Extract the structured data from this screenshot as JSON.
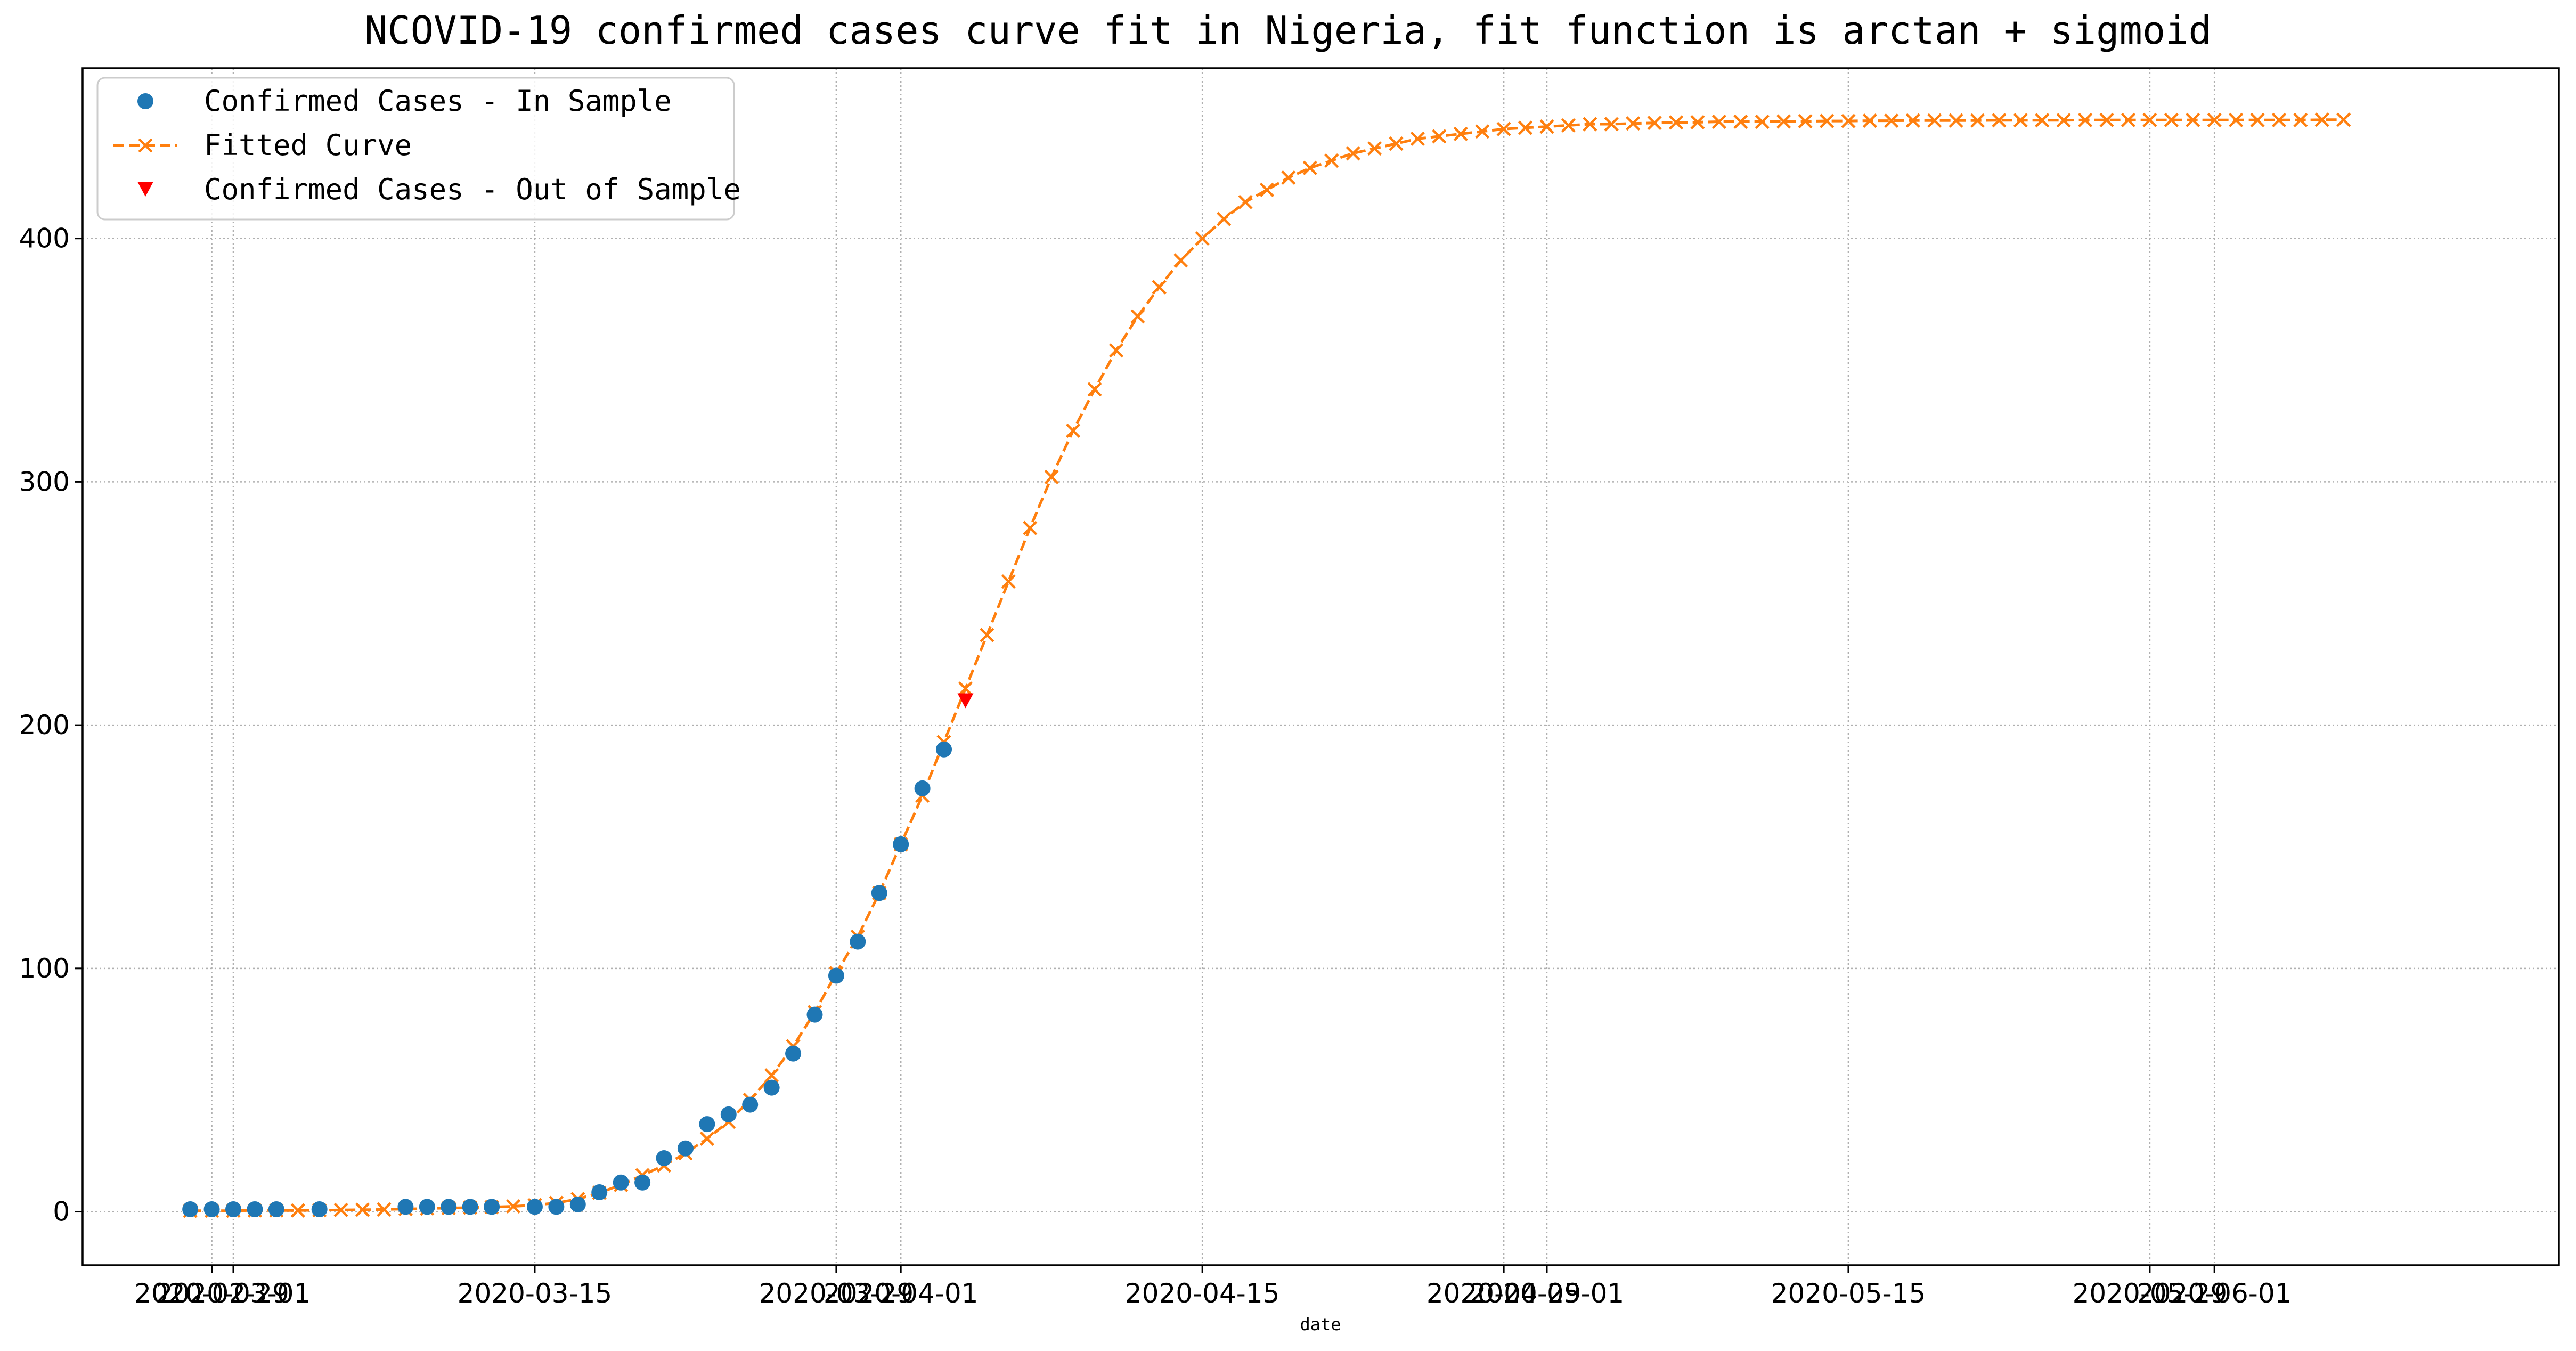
{
  "chart_data": {
    "type": "line",
    "title": "NCOVID-19 confirmed cases curve fit in Nigeria, fit function is arctan + sigmoid",
    "xlabel": "date",
    "ylabel": "",
    "x_axis_type": "date",
    "xlim": [
      "2020-02-23",
      "2020-06-17"
    ],
    "ylim": [
      -22,
      470
    ],
    "x_tick_labels": [
      {
        "date": "2020-02-29",
        "label": "2020-02-29"
      },
      {
        "date": "2020-03-01",
        "label": "2020-03-01"
      },
      {
        "date": "2020-03-15",
        "label": "2020-03-15"
      },
      {
        "date": "2020-03-29",
        "label": "2020-03-29"
      },
      {
        "date": "2020-04-01",
        "label": "2020-04-01"
      },
      {
        "date": "2020-04-15",
        "label": "2020-04-15"
      },
      {
        "date": "2020-04-29",
        "label": "2020-04-29"
      },
      {
        "date": "2020-05-01",
        "label": "2020-05-01"
      },
      {
        "date": "2020-05-15",
        "label": "2020-05-15"
      },
      {
        "date": "2020-05-29",
        "label": "2020-05-29"
      },
      {
        "date": "2020-06-01",
        "label": "2020-06-01"
      }
    ],
    "y_ticks": [
      0,
      100,
      200,
      300,
      400
    ],
    "grid": true,
    "grid_style": "dotted",
    "legend_position": "top-left",
    "series": [
      {
        "name": "Confirmed Cases - In Sample",
        "kind": "scatter",
        "marker": "circle",
        "color": "#1f77b4",
        "points": [
          [
            "2020-02-28",
            1
          ],
          [
            "2020-02-29",
            1
          ],
          [
            "2020-03-01",
            1
          ],
          [
            "2020-03-02",
            1
          ],
          [
            "2020-03-03",
            1
          ],
          [
            "2020-03-05",
            1
          ],
          [
            "2020-03-09",
            2
          ],
          [
            "2020-03-10",
            2
          ],
          [
            "2020-03-11",
            2
          ],
          [
            "2020-03-12",
            2
          ],
          [
            "2020-03-13",
            2
          ],
          [
            "2020-03-15",
            2
          ],
          [
            "2020-03-16",
            2
          ],
          [
            "2020-03-17",
            3
          ],
          [
            "2020-03-18",
            8
          ],
          [
            "2020-03-19",
            12
          ],
          [
            "2020-03-20",
            12
          ],
          [
            "2020-03-21",
            22
          ],
          [
            "2020-03-22",
            26
          ],
          [
            "2020-03-23",
            36
          ],
          [
            "2020-03-24",
            40
          ],
          [
            "2020-03-25",
            44
          ],
          [
            "2020-03-26",
            51
          ],
          [
            "2020-03-27",
            65
          ],
          [
            "2020-03-28",
            81
          ],
          [
            "2020-03-29",
            97
          ],
          [
            "2020-03-30",
            111
          ],
          [
            "2020-03-31",
            131
          ],
          [
            "2020-04-01",
            151
          ],
          [
            "2020-04-02",
            174
          ],
          [
            "2020-04-03",
            190
          ]
        ]
      },
      {
        "name": "Fitted Curve",
        "kind": "line",
        "line_style": "dashed",
        "marker": "x",
        "color": "#ff7f0e",
        "points": [
          [
            "2020-02-28",
            0.4
          ],
          [
            "2020-02-29",
            0.4
          ],
          [
            "2020-03-01",
            0.4
          ],
          [
            "2020-03-02",
            0.5
          ],
          [
            "2020-03-03",
            0.5
          ],
          [
            "2020-03-04",
            0.5
          ],
          [
            "2020-03-05",
            0.6
          ],
          [
            "2020-03-06",
            0.7
          ],
          [
            "2020-03-07",
            0.8
          ],
          [
            "2020-03-08",
            0.9
          ],
          [
            "2020-03-09",
            1.1
          ],
          [
            "2020-03-10",
            1.3
          ],
          [
            "2020-03-11",
            1.5
          ],
          [
            "2020-03-12",
            1.7
          ],
          [
            "2020-03-13",
            1.9
          ],
          [
            "2020-03-14",
            2.2
          ],
          [
            "2020-03-15",
            2.7
          ],
          [
            "2020-03-16",
            3.6
          ],
          [
            "2020-03-17",
            5.2
          ],
          [
            "2020-03-18",
            7.8
          ],
          [
            "2020-03-19",
            11
          ],
          [
            "2020-03-20",
            15
          ],
          [
            "2020-03-21",
            19
          ],
          [
            "2020-03-22",
            24
          ],
          [
            "2020-03-23",
            30
          ],
          [
            "2020-03-24",
            37
          ],
          [
            "2020-03-25",
            46
          ],
          [
            "2020-03-26",
            56
          ],
          [
            "2020-03-27",
            68
          ],
          [
            "2020-03-28",
            82
          ],
          [
            "2020-03-29",
            98
          ],
          [
            "2020-03-30",
            113
          ],
          [
            "2020-03-31",
            131
          ],
          [
            "2020-04-01",
            151
          ],
          [
            "2020-04-02",
            171
          ],
          [
            "2020-04-03",
            193
          ],
          [
            "2020-04-04",
            215
          ],
          [
            "2020-04-05",
            237
          ],
          [
            "2020-04-06",
            259
          ],
          [
            "2020-04-07",
            281
          ],
          [
            "2020-04-08",
            302
          ],
          [
            "2020-04-09",
            321
          ],
          [
            "2020-04-10",
            338
          ],
          [
            "2020-04-11",
            354
          ],
          [
            "2020-04-12",
            368
          ],
          [
            "2020-04-13",
            380
          ],
          [
            "2020-04-14",
            391
          ],
          [
            "2020-04-15",
            400
          ],
          [
            "2020-04-16",
            408
          ],
          [
            "2020-04-17",
            415
          ],
          [
            "2020-04-18",
            420
          ],
          [
            "2020-04-19",
            425
          ],
          [
            "2020-04-20",
            429
          ],
          [
            "2020-04-21",
            432
          ],
          [
            "2020-04-22",
            435
          ],
          [
            "2020-04-23",
            437
          ],
          [
            "2020-04-24",
            439
          ],
          [
            "2020-04-25",
            441
          ],
          [
            "2020-04-26",
            442
          ],
          [
            "2020-04-27",
            443
          ],
          [
            "2020-04-28",
            444
          ],
          [
            "2020-04-29",
            445
          ],
          [
            "2020-04-30",
            445.5
          ],
          [
            "2020-05-01",
            446
          ],
          [
            "2020-05-02",
            446.5
          ],
          [
            "2020-05-03",
            447
          ],
          [
            "2020-05-04",
            447
          ],
          [
            "2020-05-05",
            447.3
          ],
          [
            "2020-05-06",
            447.5
          ],
          [
            "2020-05-07",
            447.7
          ],
          [
            "2020-05-08",
            447.8
          ],
          [
            "2020-05-09",
            448
          ],
          [
            "2020-05-10",
            448
          ],
          [
            "2020-05-11",
            448
          ],
          [
            "2020-05-12",
            448.1
          ],
          [
            "2020-05-13",
            448.2
          ],
          [
            "2020-05-14",
            448.3
          ],
          [
            "2020-05-15",
            448.3
          ],
          [
            "2020-05-16",
            448.4
          ],
          [
            "2020-05-17",
            448.4
          ],
          [
            "2020-05-18",
            448.5
          ],
          [
            "2020-05-19",
            448.5
          ],
          [
            "2020-05-20",
            448.5
          ],
          [
            "2020-05-21",
            448.5
          ],
          [
            "2020-05-22",
            448.6
          ],
          [
            "2020-05-23",
            448.6
          ],
          [
            "2020-05-24",
            448.6
          ],
          [
            "2020-05-25",
            448.6
          ],
          [
            "2020-05-26",
            448.7
          ],
          [
            "2020-05-27",
            448.7
          ],
          [
            "2020-05-28",
            448.7
          ],
          [
            "2020-05-29",
            448.7
          ],
          [
            "2020-05-30",
            448.7
          ],
          [
            "2020-05-31",
            448.7
          ],
          [
            "2020-06-01",
            448.7
          ],
          [
            "2020-06-02",
            448.7
          ],
          [
            "2020-06-03",
            448.7
          ],
          [
            "2020-06-04",
            448.7
          ],
          [
            "2020-06-05",
            448.7
          ],
          [
            "2020-06-06",
            448.8
          ],
          [
            "2020-06-07",
            448.8
          ]
        ]
      },
      {
        "name": "Confirmed Cases - Out of Sample",
        "kind": "scatter",
        "marker": "triangle-down",
        "color": "#ff0000",
        "points": [
          [
            "2020-04-04",
            210
          ]
        ]
      }
    ]
  }
}
